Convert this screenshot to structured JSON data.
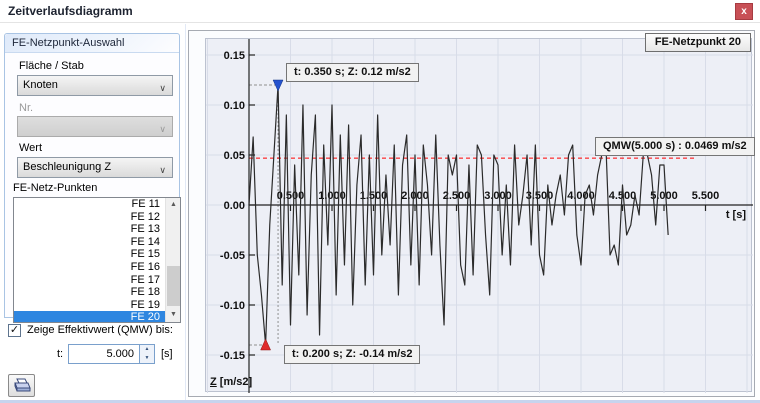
{
  "window": {
    "title": "Zeitverlaufsdiagramm",
    "close_label": "x"
  },
  "sidebar": {
    "group_title": "FE-Netzpunkt-Auswahl",
    "flaeche_stab_label": "Fläche / Stab",
    "flaeche_stab_value": "Knoten",
    "nr_label": "Nr.",
    "nr_value": "",
    "wert_label": "Wert",
    "wert_value": "Beschleunigung Z",
    "fe_points_label": "FE-Netz-Punkten",
    "fe_points": [
      "FE 11",
      "FE 12",
      "FE 13",
      "FE 14",
      "FE 15",
      "FE 16",
      "FE 17",
      "FE 18",
      "FE 19",
      "FE 20"
    ],
    "fe_selected": "FE 20",
    "checkbox_label": "Zeige Effektivwert (QMW) bis:",
    "checkbox_checked": true,
    "checkbox_glyph": "✓",
    "t_label": "t:",
    "t_value": "5.000",
    "t_unit": "[s]",
    "scroll_up_glyph": "▲",
    "scroll_down_glyph": "▼",
    "spin_up_glyph": "▲",
    "spin_down_glyph": "▼"
  },
  "chart": {
    "point_label": "FE-Netzpunkt 20",
    "max_annotation": "t: 0.350 s; Z: 0.12 m/s2",
    "min_annotation": "t: 0.200 s; Z: -0.14 m/s2",
    "qmw_annotation": "QMW(5.000 s) : 0.0469 m/s2",
    "x_axis_label": "t [s]",
    "y_axis_label_prefix": "Z",
    "y_axis_label_rest": " [m/s2]"
  },
  "colors": {
    "selection_blue": "#2e86e0",
    "close_red": "#c85056",
    "series_line": "#2b2b2b",
    "rms_red": "#ff0000",
    "marker_blue": "#2452cf",
    "marker_red": "#df2b2b",
    "grid": "#d8dce8",
    "guide_gray": "#8f8f8f"
  },
  "chart_data": {
    "type": "line",
    "title": "FE-Netzpunkt 20",
    "xlabel": "t [s]",
    "ylabel": "Z [m/s2]",
    "xlim": [
      0,
      5.6
    ],
    "ylim": [
      -0.17,
      0.17
    ],
    "grid": true,
    "x_ticks": [
      0.5,
      1.0,
      1.5,
      2.0,
      2.5,
      3.0,
      3.5,
      4.0,
      4.5,
      5.0,
      5.5
    ],
    "x_tick_labels": [
      "0.500",
      "1.000",
      "1.500",
      "2.000",
      "2.500",
      "3.000",
      "3.500",
      "4.000",
      "4.500",
      "5.000",
      "5.500"
    ],
    "y_ticks": [
      0.15,
      0.1,
      0.05,
      0.0,
      -0.05,
      -0.1,
      -0.15
    ],
    "y_tick_labels": [
      "0.15",
      "0.10",
      "0.05",
      "0.00",
      "-0.05",
      "-0.10",
      "-0.15"
    ],
    "rms": {
      "label": "QMW(5.000 s) : 0.0469 m/s2",
      "value": 0.0469,
      "t_start": 0,
      "t_end": 5.37
    },
    "extremes": [
      {
        "t": 0.35,
        "z": 0.12,
        "label": "t: 0.350 s; Z: 0.12 m/s2",
        "marker": "triangle-down",
        "color_key": "marker_blue"
      },
      {
        "t": 0.2,
        "z": -0.14,
        "label": "t: 0.200 s; Z: -0.14 m/s2",
        "marker": "triangle-up",
        "color_key": "marker_red"
      }
    ],
    "series": [
      {
        "name": "Beschleunigung Z (FE 20)",
        "x": [
          0.0,
          0.05,
          0.1,
          0.15,
          0.2,
          0.25,
          0.3,
          0.35,
          0.4,
          0.45,
          0.5,
          0.55,
          0.6,
          0.65,
          0.7,
          0.75,
          0.8,
          0.85,
          0.9,
          0.95,
          1.0,
          1.05,
          1.1,
          1.15,
          1.2,
          1.25,
          1.3,
          1.35,
          1.4,
          1.45,
          1.5,
          1.55,
          1.6,
          1.65,
          1.7,
          1.75,
          1.8,
          1.85,
          1.9,
          1.95,
          2.0,
          2.05,
          2.1,
          2.15,
          2.2,
          2.25,
          2.3,
          2.35,
          2.4,
          2.45,
          2.5,
          2.55,
          2.6,
          2.65,
          2.7,
          2.75,
          2.8,
          2.85,
          2.9,
          2.95,
          3.0,
          3.05,
          3.1,
          3.15,
          3.2,
          3.25,
          3.3,
          3.35,
          3.4,
          3.45,
          3.5,
          3.55,
          3.6,
          3.65,
          3.7,
          3.75,
          3.8,
          3.85,
          3.9,
          3.95,
          4.0,
          4.05,
          4.1,
          4.15,
          4.2,
          4.25,
          4.3,
          4.35,
          4.4,
          4.45,
          4.5,
          4.55,
          4.6,
          4.65,
          4.7,
          4.75,
          4.8,
          4.85,
          4.9,
          4.95,
          5.0,
          5.05
        ],
        "y": [
          0.0,
          0.068,
          -0.05,
          -0.09,
          -0.14,
          -0.02,
          0.05,
          0.12,
          -0.08,
          0.09,
          -0.12,
          0.04,
          -0.07,
          0.1,
          -0.11,
          0.03,
          0.09,
          -0.13,
          0.06,
          -0.04,
          0.1,
          -0.09,
          0.07,
          -0.06,
          0.08,
          -0.1,
          0.02,
          0.07,
          -0.08,
          0.05,
          -0.07,
          0.09,
          -0.05,
          0.03,
          -0.04,
          0.06,
          -0.09,
          0.04,
          0.07,
          -0.06,
          0.05,
          -0.08,
          0.06,
          0.02,
          -0.05,
          0.07,
          -0.04,
          -0.12,
          0.05,
          0.03,
          0.05,
          -0.06,
          -0.08,
          0.04,
          -0.07,
          0.06,
          0.05,
          -0.03,
          -0.09,
          0.05,
          0.04,
          -0.05,
          0.02,
          -0.06,
          0.06,
          -0.02,
          0.01,
          0.05,
          -0.04,
          0.06,
          -0.05,
          -0.07,
          0.02,
          -0.02,
          0.01,
          0.03,
          -0.01,
          0.05,
          0.06,
          -0.03,
          -0.06,
          0.01,
          0.02,
          -0.01,
          0.03,
          0.05,
          0.06,
          -0.05,
          -0.04,
          -0.06,
          0.02,
          -0.03,
          -0.02,
          0.01,
          -0.01,
          0.05,
          0.05,
          0.03,
          -0.02,
          0.04,
          0.04,
          -0.03
        ]
      }
    ]
  }
}
